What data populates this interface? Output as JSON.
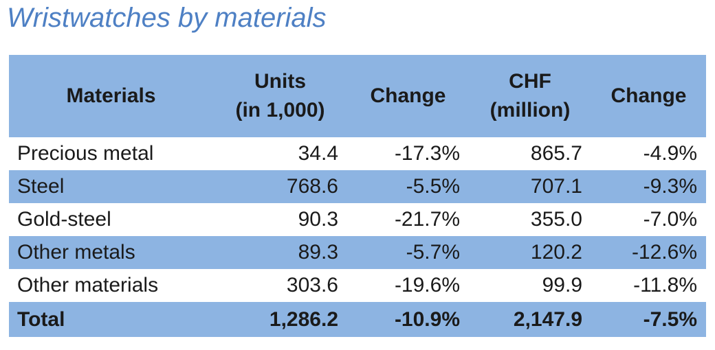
{
  "title": "Wristwatches by materials",
  "colors": {
    "band_blue": "#8DB4E2",
    "row_white": "#FFFFFF",
    "title_blue": "#4E80C4",
    "text": "#1A1A1A"
  },
  "chart_data": {
    "type": "table",
    "title": "Wristwatches by materials",
    "columns": [
      {
        "label": "Materials",
        "sub": ""
      },
      {
        "label": "Units",
        "sub": "(in 1,000)"
      },
      {
        "label": "Change",
        "sub": ""
      },
      {
        "label": "CHF",
        "sub": "(million)"
      },
      {
        "label": "Change",
        "sub": ""
      }
    ],
    "rows": [
      {
        "material": "Precious metal",
        "units": "34.4",
        "units_change": "-17.3%",
        "chf": "865.7",
        "chf_change": "-4.9%",
        "is_total": false
      },
      {
        "material": "Steel",
        "units": "768.6",
        "units_change": "-5.5%",
        "chf": "707.1",
        "chf_change": "-9.3%",
        "is_total": false
      },
      {
        "material": "Gold-steel",
        "units": "90.3",
        "units_change": "-21.7%",
        "chf": "355.0",
        "chf_change": "-7.0%",
        "is_total": false
      },
      {
        "material": "Other metals",
        "units": "89.3",
        "units_change": "-5.7%",
        "chf": "120.2",
        "chf_change": "-12.6%",
        "is_total": false
      },
      {
        "material": "Other materials",
        "units": "303.6",
        "units_change": "-19.6%",
        "chf": "99.9",
        "chf_change": "-11.8%",
        "is_total": false
      },
      {
        "material": "Total",
        "units": "1,286.2",
        "units_change": "-10.9%",
        "chf": "2,147.9",
        "chf_change": "-7.5%",
        "is_total": true
      }
    ]
  }
}
